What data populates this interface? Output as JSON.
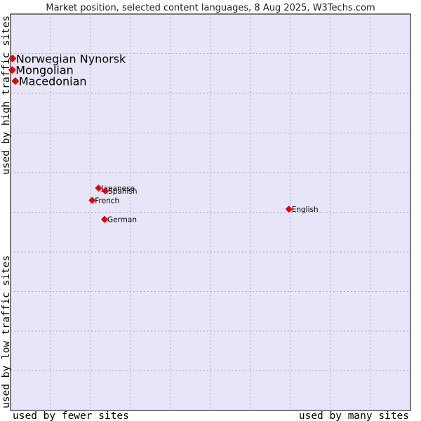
{
  "chart_data": {
    "type": "scatter",
    "title": "Market position, selected content languages, 8 Aug 2025, W3Techs.com",
    "xlabel_left": "used by fewer sites",
    "xlabel_right": "used by many sites",
    "ylabel_top": "used by high traffic sites",
    "ylabel_bottom": "used by low traffic sites",
    "xlim": [
      0,
      100
    ],
    "ylim": [
      0,
      100
    ],
    "grid": true,
    "colors": {
      "plot_bg": "#e6e6f8",
      "grid": "#a8a8c0",
      "marker": "#ee0000",
      "border": "#000000"
    },
    "points": [
      {
        "label": "Norwegian Nynorsk",
        "x": 0.5,
        "y": 88.8,
        "size": "large"
      },
      {
        "label": "Mongolian",
        "x": 0.4,
        "y": 85.9,
        "size": "large"
      },
      {
        "label": "Macedonian",
        "x": 1.2,
        "y": 83.1,
        "size": "large"
      },
      {
        "label": "Japanese",
        "x": 22.0,
        "y": 56.1,
        "size": "small"
      },
      {
        "label": "Spanish",
        "x": 23.7,
        "y": 55.4,
        "size": "small"
      },
      {
        "label": "French",
        "x": 20.4,
        "y": 53.0,
        "size": "small"
      },
      {
        "label": "German",
        "x": 23.5,
        "y": 48.2,
        "size": "small"
      },
      {
        "label": "English",
        "x": 69.6,
        "y": 50.8,
        "size": "small"
      }
    ]
  }
}
